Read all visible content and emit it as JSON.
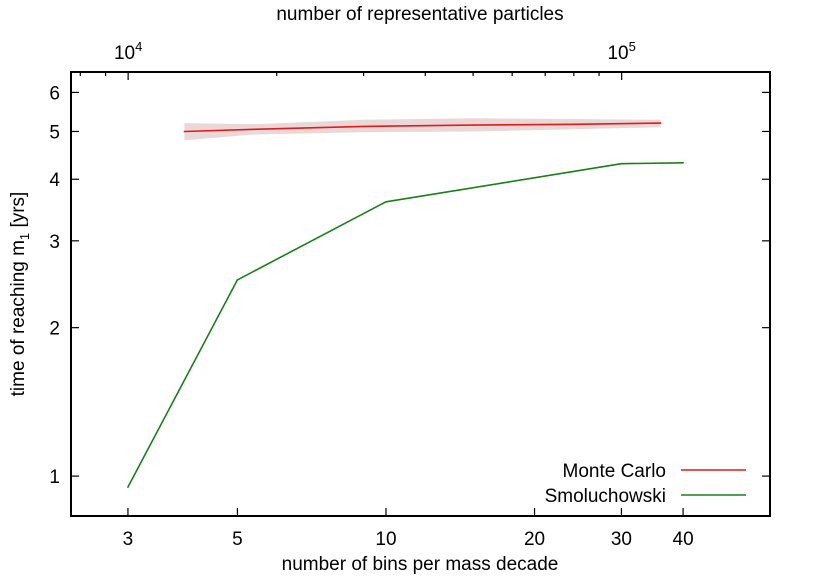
{
  "chart_data": {
    "type": "line",
    "xlabel": "number of bins per mass decade",
    "x2label": "number of representative particles",
    "ylabel": "time of reaching m",
    "ylabel_sub": "1",
    "ylabel_suffix": " [yrs]",
    "x_scale": "log",
    "y_scale": "log",
    "xlim": [
      2.3,
      60
    ],
    "ylim": [
      0.83,
      6.6
    ],
    "x2lim": [
      7660,
      199800
    ],
    "x_ticks": [
      3,
      5,
      10,
      20,
      30,
      40
    ],
    "x_tick_labels": [
      "3",
      "5",
      "10",
      "20",
      "30",
      "40"
    ],
    "y_ticks": [
      1,
      2,
      3,
      4,
      5,
      6
    ],
    "y_tick_labels": [
      "1",
      "2",
      "3",
      "4",
      "5",
      "6"
    ],
    "x2_ticks": [
      10000,
      100000
    ],
    "x2_tick_labels": [
      {
        "base": "10",
        "exp": "4"
      },
      {
        "base": "10",
        "exp": "5"
      }
    ],
    "grid": false,
    "legend_position": "bottom-right",
    "series": [
      {
        "name": "Monte Carlo",
        "color": "#e41a1c",
        "axis": "top",
        "x": [
          13000,
          18000,
          30000,
          50000,
          80000,
          120000
        ],
        "y": [
          5.0,
          5.05,
          5.12,
          5.15,
          5.17,
          5.2
        ],
        "band_lower": [
          4.8,
          4.93,
          4.98,
          5.0,
          5.05,
          5.1
        ],
        "band_upper": [
          5.2,
          5.17,
          5.28,
          5.32,
          5.3,
          5.28
        ],
        "band_color": "#ead8d8"
      },
      {
        "name": "Smoluchowski",
        "color": "#1a801a",
        "axis": "bottom",
        "x": [
          3,
          5,
          10,
          30,
          40
        ],
        "y": [
          0.95,
          2.5,
          3.6,
          4.3,
          4.32
        ]
      }
    ]
  }
}
